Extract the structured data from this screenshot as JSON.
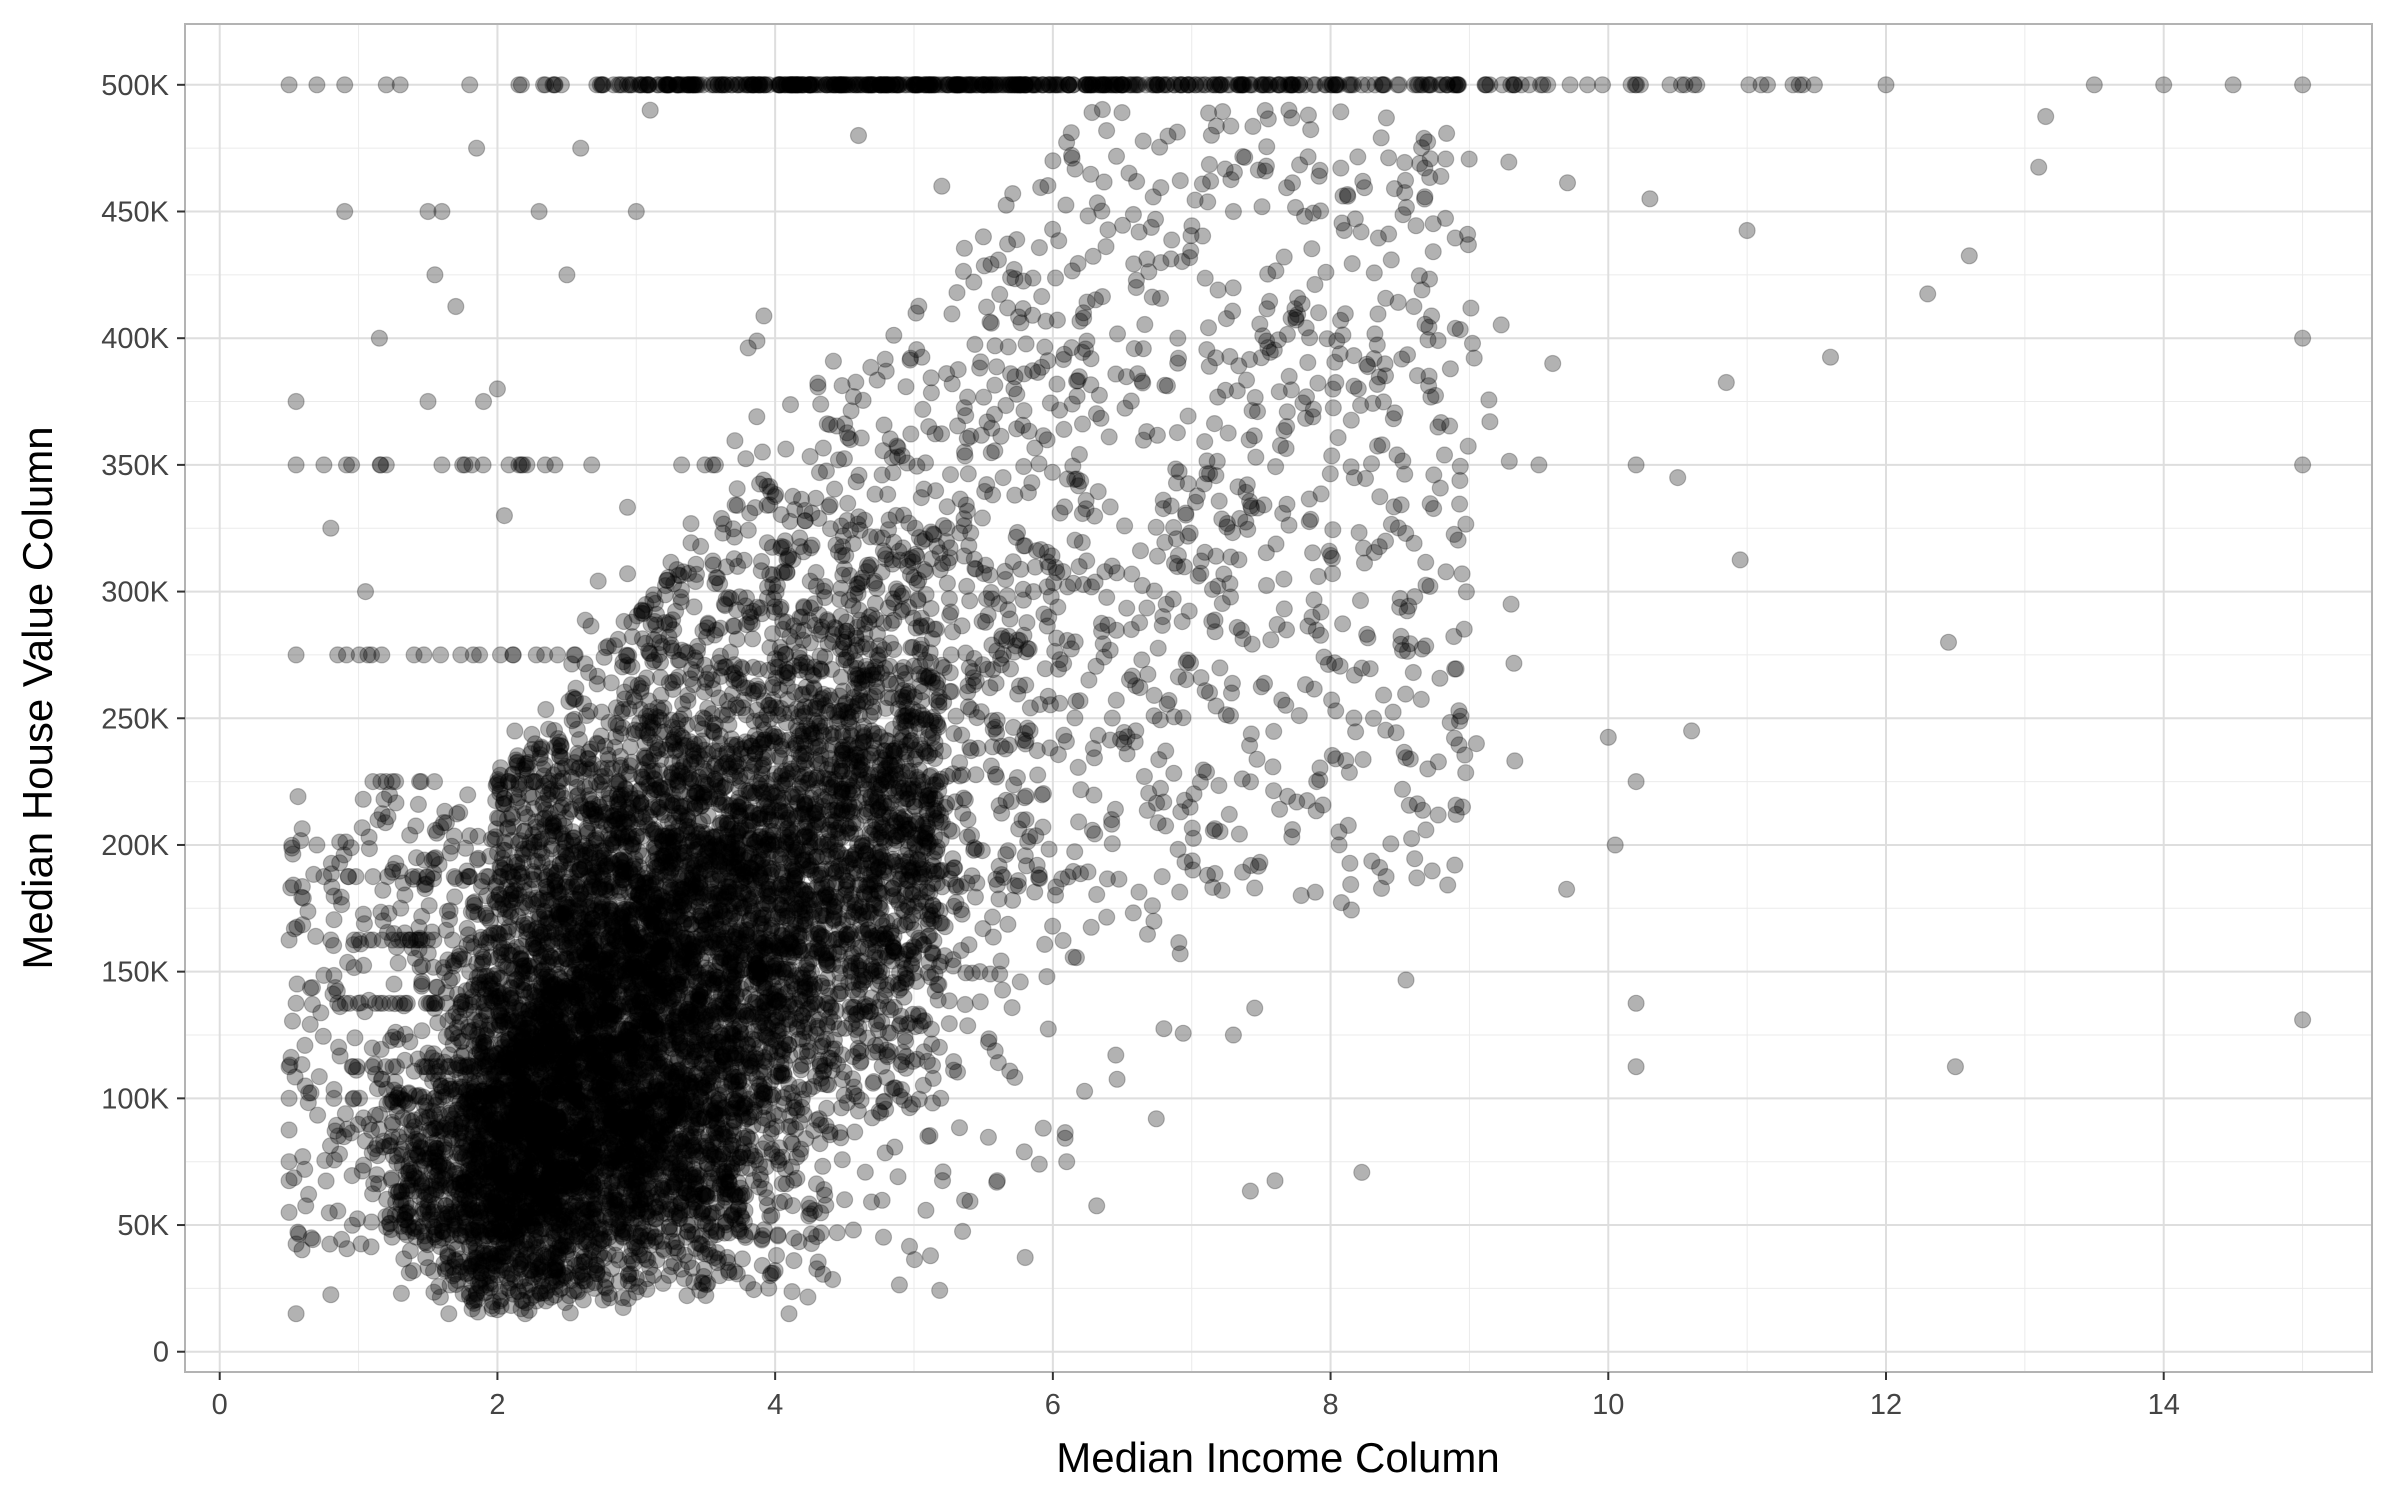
{
  "chart_data": {
    "type": "scatter",
    "title": "",
    "xlabel": "Median Income Column",
    "ylabel": "Median House Value Column",
    "xlim": [
      -0.25,
      15.5
    ],
    "ylim": [
      -8000,
      524000
    ],
    "x_ticks": [
      0,
      2,
      4,
      6,
      8,
      10,
      12,
      14
    ],
    "x_tick_labels": [
      "0",
      "2",
      "4",
      "6",
      "8",
      "10",
      "12",
      "14"
    ],
    "y_ticks": [
      0,
      50000,
      100000,
      150000,
      200000,
      250000,
      300000,
      350000,
      400000,
      450000,
      500000
    ],
    "y_tick_labels": [
      "0",
      "50K",
      "100K",
      "150K",
      "200K",
      "250K",
      "300K",
      "350K",
      "400K",
      "450K",
      "500K"
    ],
    "grid": true,
    "legend": "none",
    "point_color": "#000000",
    "point_opacity": 0.3,
    "series": [
      {
        "points": [
          [
            0.5,
            500000
          ],
          [
            0.5,
            162500
          ],
          [
            0.5,
            112500
          ],
          [
            0.5,
            100000
          ],
          [
            0.5,
            87500
          ],
          [
            0.5,
            75000
          ],
          [
            0.5,
            67500
          ],
          [
            0.5,
            55000
          ],
          [
            0.55,
            375000
          ],
          [
            0.55,
            350000
          ],
          [
            0.55,
            275000
          ],
          [
            0.55,
            137500
          ],
          [
            0.55,
            42500
          ],
          [
            0.55,
            15000
          ],
          [
            0.7,
            500000
          ],
          [
            0.75,
            350000
          ],
          [
            0.8,
            325000
          ],
          [
            0.85,
            275000
          ],
          [
            0.9,
            450000
          ],
          [
            0.9,
            500000
          ],
          [
            0.95,
            350000
          ],
          [
            0.8,
            162500
          ],
          [
            0.7,
            200000
          ],
          [
            0.75,
            187500
          ],
          [
            0.85,
            137500
          ],
          [
            0.8,
            22500
          ],
          [
            1.05,
            300000
          ],
          [
            1.15,
            400000
          ],
          [
            1.2,
            500000
          ],
          [
            1.2,
            350000
          ],
          [
            1.3,
            500000
          ],
          [
            1.4,
            275000
          ],
          [
            1.45,
            225000
          ],
          [
            1.5,
            375000
          ],
          [
            1.5,
            450000
          ],
          [
            1.6,
            450000
          ],
          [
            1.6,
            350000
          ],
          [
            1.7,
            412500
          ],
          [
            1.75,
            350000
          ],
          [
            1.8,
            500000
          ],
          [
            1.85,
            475000
          ],
          [
            1.9,
            375000
          ],
          [
            1.55,
            425000
          ],
          [
            1.65,
            15000
          ],
          [
            2.0,
            380000
          ],
          [
            2.05,
            330000
          ],
          [
            2.2,
            15000
          ],
          [
            2.3,
            450000
          ],
          [
            2.4,
            500000
          ],
          [
            2.5,
            425000
          ],
          [
            2.6,
            475000
          ],
          [
            2.7,
            25000
          ],
          [
            2.9,
            500000
          ],
          [
            3.0,
            450000
          ],
          [
            3.1,
            490000
          ],
          [
            3.2,
            40000
          ],
          [
            3.4,
            500000
          ],
          [
            3.6,
            30000
          ],
          [
            4.0,
            32000
          ],
          [
            4.1,
            15000
          ],
          [
            4.4,
            500000
          ],
          [
            4.5,
            60000
          ],
          [
            4.6,
            480000
          ],
          [
            5.0,
            500000
          ],
          [
            5.1,
            85000
          ],
          [
            5.2,
            460000
          ],
          [
            5.35,
            47500
          ],
          [
            5.5,
            440000
          ],
          [
            5.6,
            67500
          ],
          [
            5.8,
            500000
          ],
          [
            6.0,
            470000
          ],
          [
            6.1,
            75000
          ],
          [
            6.4,
            500000
          ],
          [
            6.6,
            420000
          ],
          [
            6.8,
            127500
          ],
          [
            6.9,
            400000
          ],
          [
            7.1,
            500000
          ],
          [
            7.3,
            450000
          ],
          [
            7.3,
            125000
          ],
          [
            7.6,
            67500
          ],
          [
            7.7,
            490000
          ],
          [
            7.9,
            225000
          ],
          [
            8.0,
            500000
          ],
          [
            8.2,
            380000
          ],
          [
            8.4,
            187500
          ],
          [
            8.6,
            412500
          ],
          [
            8.7,
            230000
          ],
          [
            8.9,
            500000
          ],
          [
            8.95,
            215000
          ],
          [
            9.05,
            240000
          ],
          [
            9.3,
            295000
          ],
          [
            9.5,
            350000
          ],
          [
            9.6,
            390000
          ],
          [
            9.7,
            182500
          ],
          [
            9.85,
            500000
          ],
          [
            10.0,
            242500
          ],
          [
            10.05,
            200000
          ],
          [
            10.2,
            112500
          ],
          [
            10.2,
            137500
          ],
          [
            10.2,
            225000
          ],
          [
            10.2,
            350000
          ],
          [
            10.3,
            455000
          ],
          [
            10.5,
            345000
          ],
          [
            10.6,
            245000
          ],
          [
            10.85,
            382500
          ],
          [
            10.95,
            312500
          ],
          [
            11.0,
            442500
          ],
          [
            11.1,
            500000
          ],
          [
            11.6,
            392500
          ],
          [
            12.0,
            500000
          ],
          [
            12.3,
            417500
          ],
          [
            12.5,
            112500
          ],
          [
            12.45,
            280000
          ],
          [
            12.6,
            432500
          ],
          [
            13.1,
            467500
          ],
          [
            13.15,
            487500
          ],
          [
            13.5,
            500000
          ],
          [
            14.0,
            500000
          ],
          [
            14.5,
            500000
          ],
          [
            15.0,
            500000
          ],
          [
            15.0,
            400000
          ],
          [
            15.0,
            350000
          ],
          [
            15.0,
            131000
          ]
        ]
      }
    ]
  }
}
